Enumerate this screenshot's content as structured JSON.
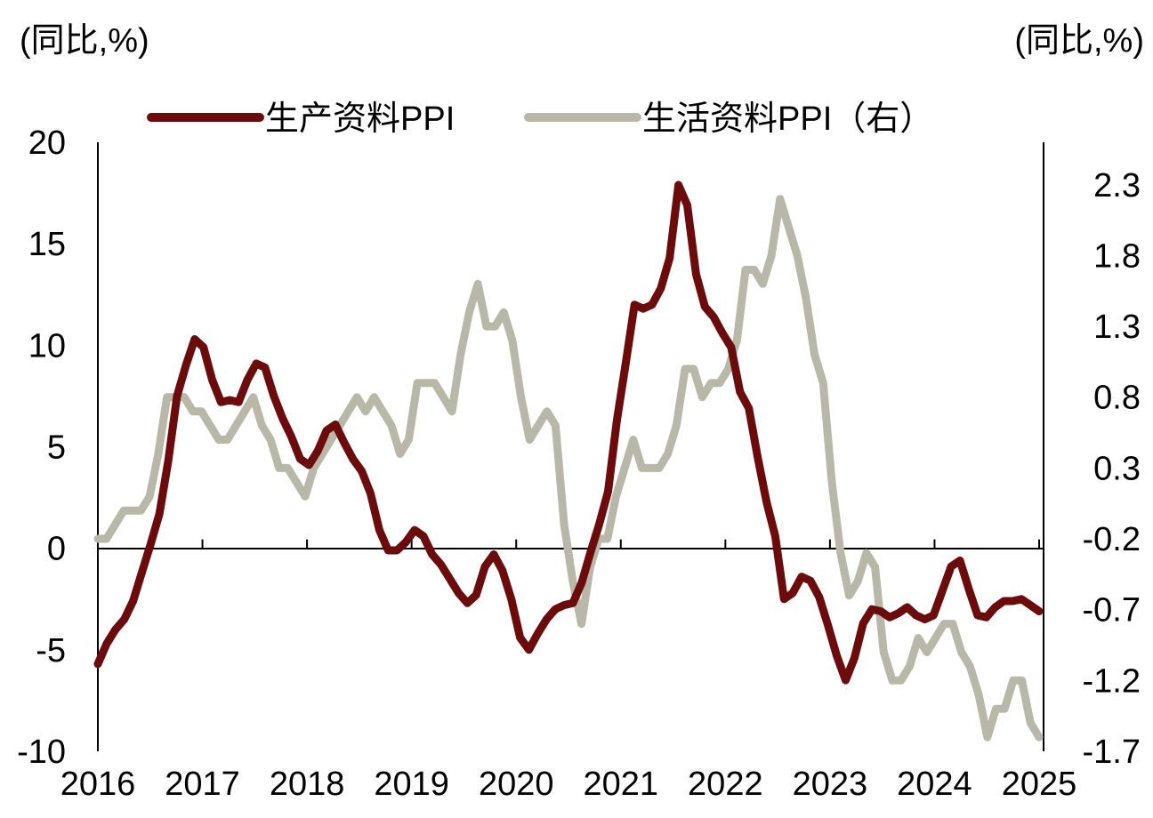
{
  "chart_data": {
    "type": "line",
    "left_axis_unit": "(同比,%)",
    "right_axis_unit": "(同比,%)",
    "x_ticks": [
      "2016",
      "2017",
      "2018",
      "2019",
      "2020",
      "2021",
      "2022",
      "2023",
      "2024",
      "2025"
    ],
    "x_range": [
      2016,
      2025
    ],
    "y_left": {
      "min": -10,
      "max": 20,
      "ticks": [
        "20",
        "15",
        "10",
        "5",
        "0",
        "-5",
        "-10"
      ]
    },
    "y_right": {
      "min": -1.7,
      "max": 2.6,
      "ticks": [
        "2.3",
        "1.8",
        "1.3",
        "0.8",
        "0.3",
        "-0.2",
        "-0.7",
        "-1.2",
        "-1.7"
      ]
    },
    "series": [
      {
        "name": "生产资料PPI",
        "axis": "left",
        "color": "#6b0b0b",
        "start": 2016,
        "values": [
          -5.7,
          -4.7,
          -4.0,
          -3.5,
          -2.6,
          -1.2,
          0.2,
          1.7,
          4.3,
          7.5,
          9.0,
          10.3,
          9.9,
          8.3,
          7.2,
          7.3,
          7.2,
          8.3,
          9.1,
          8.9,
          7.5,
          6.4,
          5.5,
          4.4,
          4.1,
          4.8,
          5.8,
          6.1,
          5.2,
          4.4,
          3.8,
          2.7,
          0.9,
          -0.1,
          -0.1,
          0.3,
          0.9,
          0.6,
          -0.3,
          -0.8,
          -1.5,
          -2.2,
          -2.7,
          -2.3,
          -0.9,
          -0.3,
          -1.1,
          -2.5,
          -4.4,
          -5.0,
          -4.2,
          -3.5,
          -3.0,
          -2.8,
          -2.7,
          -1.7,
          -0.2,
          1.2,
          2.8,
          6.3,
          9.1,
          12.0,
          11.8,
          12.0,
          12.8,
          14.3,
          17.9,
          16.9,
          13.5,
          11.9,
          11.4,
          10.6,
          9.9,
          7.7,
          6.9,
          4.5,
          2.3,
          0.6,
          -2.5,
          -2.2,
          -1.4,
          -1.6,
          -2.4,
          -3.8,
          -5.3,
          -6.5,
          -5.4,
          -3.7,
          -3.0,
          -3.1,
          -3.4,
          -3.2,
          -2.9,
          -3.3,
          -3.5,
          -3.3,
          -2.1,
          -0.9,
          -0.6,
          -2.0,
          -3.3,
          -3.4,
          -2.9,
          -2.6,
          -2.6,
          -2.5,
          -2.8,
          -3.1
        ]
      },
      {
        "name": "生活资料PPI（右）",
        "axis": "right",
        "color": "#b9b8a8",
        "start": 2016,
        "values": [
          -0.2,
          -0.2,
          -0.1,
          0.0,
          0.0,
          0.0,
          0.1,
          0.4,
          0.8,
          0.8,
          0.8,
          0.7,
          0.7,
          0.6,
          0.5,
          0.5,
          0.6,
          0.7,
          0.8,
          0.6,
          0.5,
          0.3,
          0.3,
          0.2,
          0.1,
          0.3,
          0.4,
          0.5,
          0.6,
          0.7,
          0.8,
          0.7,
          0.8,
          0.7,
          0.6,
          0.4,
          0.5,
          0.9,
          0.9,
          0.9,
          0.8,
          0.7,
          1.1,
          1.4,
          1.6,
          1.3,
          1.3,
          1.4,
          1.2,
          0.8,
          0.5,
          0.6,
          0.7,
          0.6,
          -0.1,
          -0.5,
          -0.8,
          -0.4,
          -0.2,
          -0.2,
          0.1,
          0.3,
          0.5,
          0.3,
          0.3,
          0.3,
          0.4,
          0.6,
          1.0,
          1.0,
          0.8,
          0.9,
          0.9,
          1.0,
          1.2,
          1.7,
          1.7,
          1.6,
          1.8,
          2.2,
          2.0,
          1.8,
          1.5,
          1.1,
          0.9,
          0.2,
          -0.3,
          -0.6,
          -0.5,
          -0.3,
          -0.4,
          -1.0,
          -1.2,
          -1.2,
          -1.1,
          -0.9,
          -1.0,
          -0.9,
          -0.8,
          -0.8,
          -1.0,
          -1.1,
          -1.3,
          -1.6,
          -1.4,
          -1.4,
          -1.2,
          -1.2,
          -1.5,
          -1.6
        ]
      }
    ]
  }
}
